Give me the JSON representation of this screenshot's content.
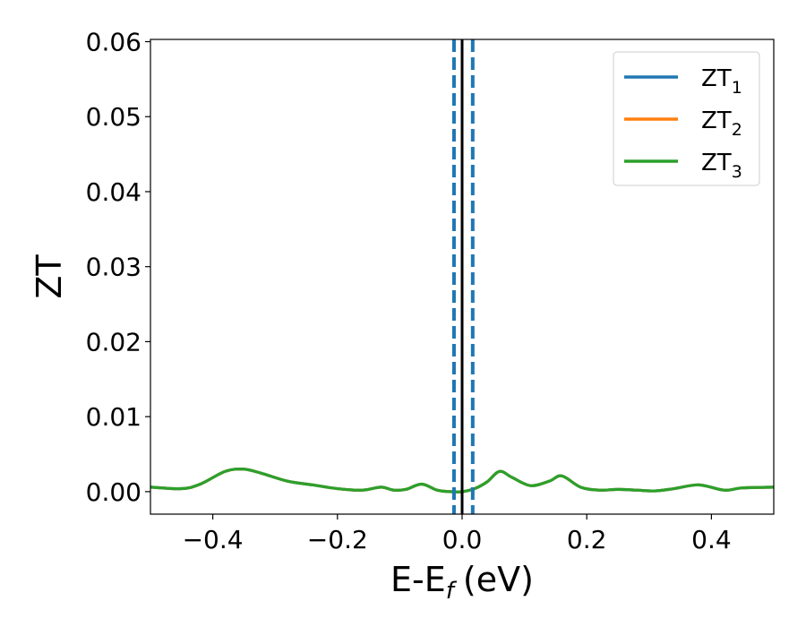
{
  "chart_data": {
    "type": "line",
    "xlabel": "E-E",
    "xlabel_sub": "f",
    "xlabel_unit": "(eV)",
    "ylabel": "ZT",
    "xlim": [
      -0.5,
      0.5
    ],
    "ylim": [
      -0.003,
      0.0603
    ],
    "xticks": [
      -0.4,
      -0.2,
      0.0,
      0.2,
      0.4
    ],
    "xtick_labels": [
      "−0.4",
      "−0.2",
      "0.0",
      "0.2",
      "0.4"
    ],
    "yticks": [
      0.0,
      0.01,
      0.02,
      0.03,
      0.04,
      0.05,
      0.06
    ],
    "ytick_labels": [
      "0.00",
      "0.01",
      "0.02",
      "0.03",
      "0.04",
      "0.05",
      "0.06"
    ],
    "grid": false,
    "legend_position": "top-right",
    "series": [
      {
        "name": "ZT",
        "name_sub": "1",
        "color": "#1f77b4",
        "x": [
          -0.5,
          -0.45,
          -0.42,
          -0.38,
          -0.35,
          -0.32,
          -0.28,
          -0.24,
          -0.2,
          -0.16,
          -0.13,
          -0.11,
          -0.09,
          -0.065,
          -0.04,
          -0.02,
          0.0,
          0.02,
          0.04,
          0.06,
          0.08,
          0.11,
          0.14,
          0.16,
          0.19,
          0.22,
          0.25,
          0.28,
          0.31,
          0.34,
          0.38,
          0.42,
          0.45,
          0.5
        ],
        "y": [
          0.0006,
          0.0004,
          0.001,
          0.0027,
          0.003,
          0.0024,
          0.0014,
          0.0009,
          0.0004,
          0.0002,
          0.0006,
          0.0002,
          0.0003,
          0.001,
          0.0002,
          0.0,
          0.0,
          0.0004,
          0.0013,
          0.0027,
          0.0019,
          0.0008,
          0.0014,
          0.0021,
          0.0006,
          0.0002,
          0.0003,
          0.0002,
          0.0001,
          0.0004,
          0.0009,
          0.0002,
          0.0005,
          0.0006
        ]
      },
      {
        "name": "ZT",
        "name_sub": "2",
        "color": "#ff7f0e",
        "x": [
          -0.5,
          -0.45,
          -0.42,
          -0.38,
          -0.35,
          -0.32,
          -0.28,
          -0.24,
          -0.2,
          -0.16,
          -0.13,
          -0.11,
          -0.09,
          -0.065,
          -0.04,
          -0.02,
          0.0,
          0.02,
          0.04,
          0.06,
          0.08,
          0.11,
          0.14,
          0.16,
          0.19,
          0.22,
          0.25,
          0.28,
          0.31,
          0.34,
          0.38,
          0.42,
          0.45,
          0.5
        ],
        "y": [
          0.0006,
          0.0004,
          0.001,
          0.0027,
          0.003,
          0.0024,
          0.0014,
          0.0009,
          0.0004,
          0.0002,
          0.0006,
          0.0002,
          0.0003,
          0.001,
          0.0002,
          0.0,
          0.0,
          0.0004,
          0.0013,
          0.0027,
          0.0019,
          0.0008,
          0.0014,
          0.0021,
          0.0006,
          0.0002,
          0.0003,
          0.0002,
          0.0001,
          0.0004,
          0.0009,
          0.0002,
          0.0005,
          0.0006
        ]
      },
      {
        "name": "ZT",
        "name_sub": "3",
        "color": "#2ca02c",
        "x": [
          -0.5,
          -0.45,
          -0.42,
          -0.38,
          -0.35,
          -0.32,
          -0.28,
          -0.24,
          -0.2,
          -0.16,
          -0.13,
          -0.11,
          -0.09,
          -0.065,
          -0.04,
          -0.02,
          0.0,
          0.02,
          0.04,
          0.06,
          0.08,
          0.11,
          0.14,
          0.16,
          0.19,
          0.22,
          0.25,
          0.28,
          0.31,
          0.34,
          0.38,
          0.42,
          0.45,
          0.5
        ],
        "y": [
          0.0006,
          0.0004,
          0.001,
          0.0027,
          0.003,
          0.0024,
          0.0014,
          0.0009,
          0.0004,
          0.0002,
          0.0006,
          0.0002,
          0.0003,
          0.001,
          0.0002,
          0.0,
          0.0,
          0.0004,
          0.0013,
          0.0027,
          0.0019,
          0.0008,
          0.0014,
          0.0021,
          0.0006,
          0.0002,
          0.0003,
          0.0002,
          0.0001,
          0.0004,
          0.0009,
          0.0002,
          0.0005,
          0.0006
        ]
      }
    ],
    "vertical_lines": [
      {
        "x": -0.013,
        "style": "dashed",
        "color": "#1f77b4"
      },
      {
        "x": 0.017,
        "style": "dashed",
        "color": "#1f77b4"
      },
      {
        "x": 0.0,
        "style": "solid",
        "color": "#000000"
      }
    ]
  }
}
